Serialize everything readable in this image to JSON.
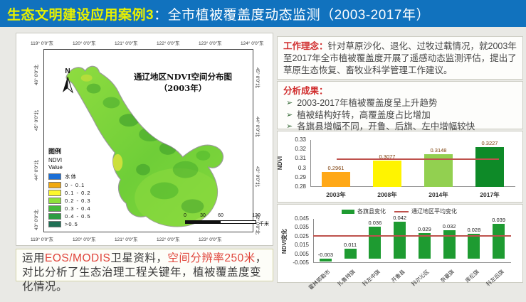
{
  "title_bar": {
    "highlight": "生态文明建设应用案例3",
    "rest": "：全市植被覆盖度动态监测（2003-2017年）"
  },
  "map_panel": {
    "title_line1": "通辽地区NDVI空间分布图",
    "title_line2": "（2003年）",
    "north_label": "N",
    "top_ticks": [
      "119° 0′0″东",
      "120° 0′0″东",
      "121° 0′0″东",
      "122° 0′0″东",
      "123° 0′0″东",
      "124° 0′0″东"
    ],
    "bottom_ticks": [
      "119° 0′0″东",
      "120° 0′0″东",
      "121° 0′0″东",
      "122° 0′0″东",
      "123° 0′0″东"
    ],
    "left_ticks": [
      "46° 0′0″北",
      "45° 0′0″北",
      "44° 0′0″北",
      "43° 0′0″北"
    ],
    "right_ticks": [
      "45° 0′0″北",
      "44° 0′0″北",
      "43° 0′0″北",
      "42° 0′0″北"
    ],
    "legend": {
      "title": "图例",
      "subtitle1": "NDVI",
      "subtitle2": "Value",
      "items": [
        {
          "label": "水体",
          "color": "#1c6fd6"
        },
        {
          "label": "0 - 0.1",
          "color": "#f0a80f"
        },
        {
          "label": "0.1 - 0.2",
          "color": "#fdf72b"
        },
        {
          "label": "0.2 - 0.3",
          "color": "#8ee03b"
        },
        {
          "label": "0.3 - 0.4",
          "color": "#45b93b"
        },
        {
          "label": "0.4 - 0.5",
          "color": "#2c9c41"
        },
        {
          "label": ">0.5",
          "color": "#1f7055"
        }
      ]
    },
    "scale_bar": {
      "labels": [
        "0",
        "30",
        "60",
        "120"
      ],
      "unit": "千米"
    }
  },
  "work_box": {
    "label": "工作理念：",
    "body": "针对草原沙化、退化、过牧过载情况，就2003年至2017年全市植被覆盖度开展了遥感动态监测评估，提出了草原生态恢复、畜牧业科学管理工作建议。"
  },
  "results_box": {
    "label": "分析成果：",
    "bullet_char": "➢",
    "bullets": [
      "2003-2017年植被覆盖度呈上升趋势",
      "植被结构好转，高覆盖度占比增加",
      "各旗县增幅不同，开鲁、后旗、左中增幅较快"
    ]
  },
  "note": {
    "segments": [
      "运用",
      "EOS/MODIS",
      "卫星资料，",
      "空间分辨率250米",
      "，对比分析了生态治理工程关键年，植被覆盖度变化情况。"
    ]
  },
  "chart_data": [
    {
      "type": "bar",
      "title": "",
      "ylabel": "NDVI",
      "categories": [
        "2003年",
        "2008年",
        "2014年",
        "2017年"
      ],
      "values": [
        0.2961,
        0.3077,
        0.3148,
        0.3227
      ],
      "value_labels": [
        "0.2961",
        "0.3077",
        "0.3148",
        "0.3227"
      ],
      "bar_colors": [
        "#ffa817",
        "#fff400",
        "#92d050",
        "#0e8a28"
      ],
      "ylim": [
        0.28,
        0.33
      ],
      "yticks": [
        0.28,
        0.29,
        0.3,
        0.31,
        0.32,
        0.33
      ],
      "ytick_labels": [
        "0.28",
        "0.29",
        "0.3",
        "0.31",
        "0.32",
        "0.33"
      ],
      "avg_line": 0.3103,
      "avg_line_color": "#be514c",
      "grid": false,
      "legend_position": "none"
    },
    {
      "type": "bar",
      "title": "",
      "ylabel": "NDVI变化",
      "categories": [
        "霍林郭勒市",
        "扎鲁特旗",
        "科左中旗",
        "开鲁县",
        "科尔沁区",
        "奈曼旗",
        "库伦旗",
        "科左后旗"
      ],
      "values": [
        -0.003,
        0.011,
        0.036,
        0.042,
        0.029,
        0.032,
        0.028,
        0.039
      ],
      "value_labels": [
        "-0.003",
        "0.011",
        "0.036",
        "0.042",
        "0.029",
        "0.032",
        "0.028",
        "0.039"
      ],
      "bar_color": "#1e9b31",
      "ylim": [
        -0.005,
        0.045
      ],
      "yticks": [
        -0.005,
        0.005,
        0.015,
        0.025,
        0.035,
        0.045
      ],
      "ytick_labels": [
        "-0.005",
        "0.005",
        "0.015",
        "0.025",
        "0.035",
        "0.045"
      ],
      "avg_line": 0.0268,
      "avg_line_color": "#be514c",
      "legend": [
        {
          "label": "各旗县变化",
          "marker": "bar",
          "color": "#1e9b31"
        },
        {
          "label": "通辽地区平均变化",
          "marker": "line",
          "color": "#be514c"
        }
      ],
      "grid": false,
      "legend_position": "top"
    }
  ]
}
